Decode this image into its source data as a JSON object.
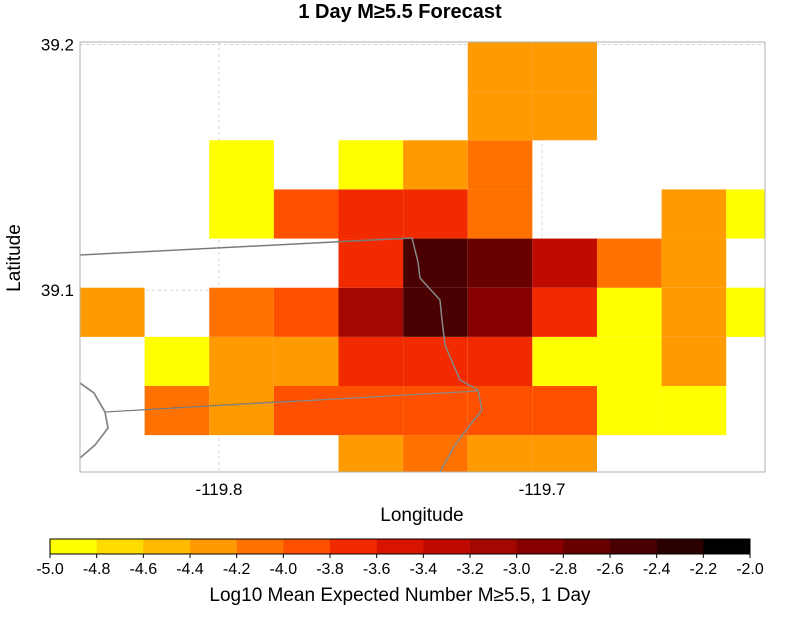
{
  "chart_data": {
    "type": "heatmap",
    "title": "1 Day M≥5.5 Forecast",
    "xlabel": "Longitude",
    "ylabel": "Latitude",
    "xlim": [
      -119.843,
      -119.631
    ],
    "ylim": [
      39.026,
      39.201
    ],
    "x_ticks": [
      {
        "value": -119.8,
        "label": "-119.8"
      },
      {
        "value": -119.7,
        "label": "-119.7"
      }
    ],
    "y_ticks": [
      {
        "value": 39.2,
        "label": "39.2"
      },
      {
        "value": 39.1,
        "label": "39.1"
      }
    ],
    "grid": true,
    "cell_size_deg": 0.02,
    "cell_lon_centers": [
      -119.833,
      -119.813,
      -119.793,
      -119.773,
      -119.753,
      -119.733,
      -119.713,
      -119.693,
      -119.673,
      -119.653,
      -119.633
    ],
    "cell_lat_centers": [
      39.031,
      39.051,
      39.071,
      39.091,
      39.111,
      39.131,
      39.151,
      39.171,
      39.191
    ],
    "grid_values": [
      [
        null,
        null,
        null,
        null,
        -4.3,
        -4.1,
        -4.3,
        -4.3,
        null,
        null,
        null
      ],
      [
        null,
        -4.1,
        -4.3,
        -3.9,
        -3.9,
        -3.9,
        -3.9,
        -3.9,
        -4.9,
        -4.9,
        null
      ],
      [
        null,
        -4.9,
        -4.3,
        -4.3,
        -3.7,
        -3.7,
        -3.7,
        -4.9,
        -4.9,
        -4.3,
        null
      ],
      [
        -4.3,
        null,
        -4.1,
        -3.9,
        -3.1,
        -2.5,
        -2.9,
        -3.7,
        -4.9,
        -4.3,
        -4.9
      ],
      [
        null,
        null,
        null,
        null,
        -3.7,
        -2.5,
        -2.7,
        -3.3,
        -4.1,
        -4.3,
        null
      ],
      [
        null,
        null,
        -4.9,
        -3.9,
        -3.7,
        -3.7,
        -4.1,
        null,
        null,
        -4.3,
        -4.9
      ],
      [
        null,
        null,
        -4.9,
        null,
        -4.9,
        -4.3,
        -4.1,
        null,
        null,
        null,
        null
      ],
      [
        null,
        null,
        null,
        null,
        null,
        null,
        -4.3,
        -4.3,
        null,
        null,
        null
      ],
      [
        null,
        null,
        null,
        null,
        null,
        null,
        -4.3,
        -4.3,
        null,
        null,
        null
      ]
    ],
    "colorbar": {
      "label": "Log10 Mean Expected Number M≥5.5, 1 Day",
      "range": [
        -5.0,
        -2.0
      ],
      "step": 0.2,
      "tick_labels": [
        "-5.0",
        "-4.8",
        "-4.6",
        "-4.4",
        "-4.2",
        "-4.0",
        "-3.8",
        "-3.6",
        "-3.4",
        "-3.2",
        "-3.0",
        "-2.8",
        "-2.6",
        "-2.4",
        "-2.2",
        "-2.0"
      ],
      "colors": [
        "#ffff00",
        "#ffdc00",
        "#ffba00",
        "#ff9a00",
        "#ff7200",
        "#ff5000",
        "#f22a00",
        "#d81400",
        "#c00a00",
        "#a20800",
        "#860000",
        "#680000",
        "#4a0000",
        "#2a0000",
        "#000000"
      ]
    }
  }
}
